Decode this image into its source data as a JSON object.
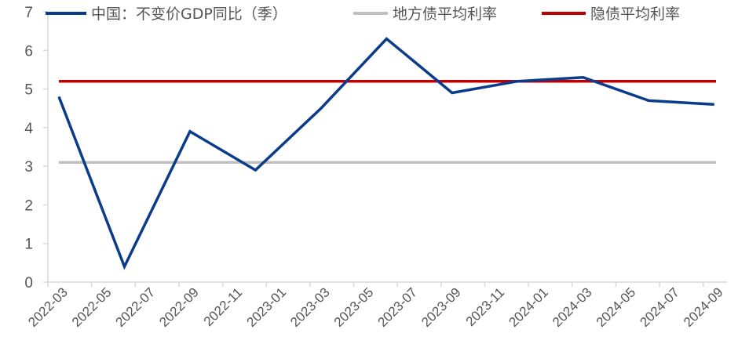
{
  "chart_data": {
    "type": "line",
    "title": "",
    "xlabel": "",
    "ylabel": "",
    "ylim": [
      0,
      7
    ],
    "yticks": [
      0,
      1,
      2,
      3,
      4,
      5,
      6,
      7
    ],
    "grid": false,
    "legend_position": "top",
    "x_tick_labels": [
      "2022-03",
      "2022-05",
      "2022-07",
      "2022-09",
      "2022-11",
      "2023-01",
      "2023-03",
      "2023-05",
      "2023-07",
      "2023-09",
      "2023-11",
      "2024-01",
      "2024-03",
      "2024-05",
      "2024-07",
      "2024-09"
    ],
    "x": [
      "2022-03",
      "2022-06",
      "2022-09",
      "2022-12",
      "2023-03",
      "2023-06",
      "2023-09",
      "2023-12",
      "2024-03",
      "2024-06",
      "2024-09"
    ],
    "series": [
      {
        "name": "中国：不变价GDP同比（季）",
        "color": "#0B3C8C",
        "values": [
          4.8,
          0.4,
          3.9,
          2.9,
          4.5,
          6.3,
          4.9,
          5.2,
          5.3,
          4.7,
          4.6
        ]
      },
      {
        "name": "地方债平均利率",
        "color": "#C0C0C0",
        "values": [
          3.1,
          3.1,
          3.1,
          3.1,
          3.1,
          3.1,
          3.1,
          3.1,
          3.1,
          3.1,
          3.1
        ]
      },
      {
        "name": "隐债平均利率",
        "color": "#C00000",
        "values": [
          5.2,
          5.2,
          5.2,
          5.2,
          5.2,
          5.2,
          5.2,
          5.2,
          5.2,
          5.2,
          5.2
        ]
      }
    ]
  }
}
